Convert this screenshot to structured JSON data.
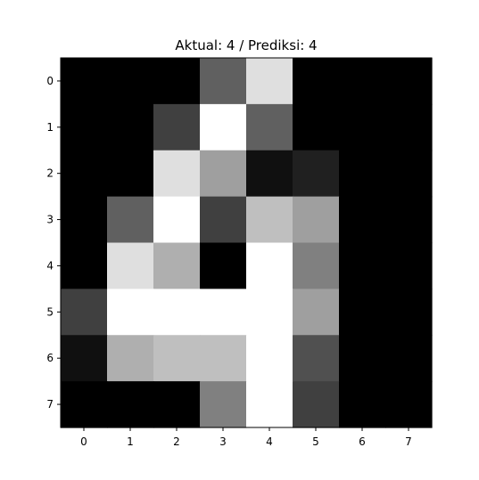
{
  "chart_data": {
    "type": "heatmap",
    "title": "Aktual: 4 / Prediksi: 4",
    "xlabel": "",
    "ylabel": "",
    "colormap": "gray",
    "vmin": 0,
    "vmax": 16,
    "x_ticks": [
      "0",
      "1",
      "2",
      "3",
      "4",
      "5",
      "6",
      "7"
    ],
    "y_ticks": [
      "0",
      "1",
      "2",
      "3",
      "4",
      "5",
      "6",
      "7"
    ],
    "values": [
      [
        0,
        0,
        0,
        6,
        14,
        0,
        0,
        0
      ],
      [
        0,
        0,
        4,
        16,
        6,
        0,
        0,
        0
      ],
      [
        0,
        0,
        14,
        10,
        1,
        2,
        0,
        0
      ],
      [
        0,
        6,
        16,
        4,
        12,
        10,
        0,
        0
      ],
      [
        0,
        14,
        11,
        0,
        16,
        8,
        0,
        0
      ],
      [
        4,
        16,
        16,
        16,
        16,
        10,
        0,
        0
      ],
      [
        1,
        11,
        12,
        12,
        16,
        5,
        0,
        0
      ],
      [
        0,
        0,
        0,
        8,
        16,
        4,
        0,
        0
      ]
    ],
    "grid": false,
    "legend": "none"
  }
}
